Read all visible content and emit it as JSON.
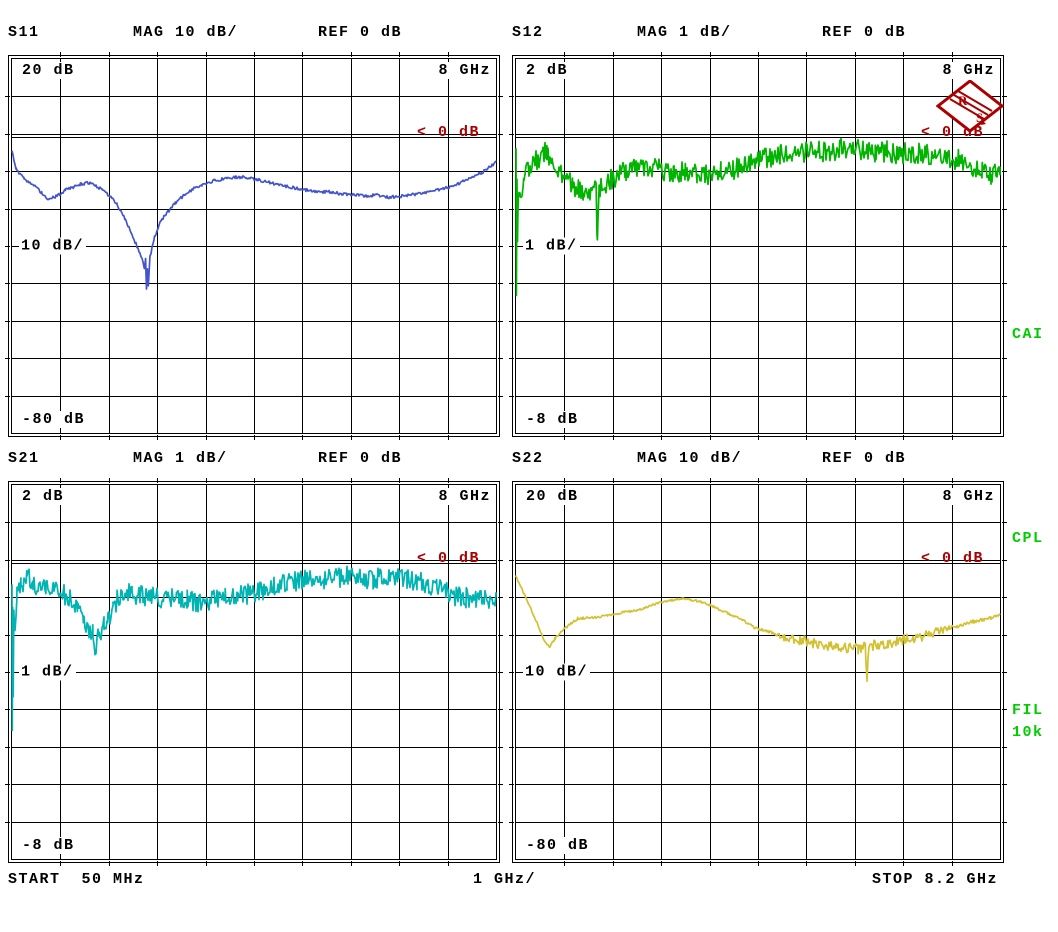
{
  "status_bar": {
    "start": "START  50 MHz",
    "per_div": "1 GHz/",
    "stop": "STOP 8.2 GHz"
  },
  "softkeys": {
    "items": [
      "CAI",
      "CPL",
      "FIL",
      "10k"
    ],
    "color": "#00cc00"
  },
  "logo": {
    "letters": {
      "r": "R",
      "s": "S"
    },
    "color": "#aa0000"
  },
  "colors": {
    "marker": "#aa0000",
    "grid": "#000000",
    "background": "#ffffff"
  },
  "chart_data": [
    {
      "type": "line",
      "param": "S11",
      "header": {
        "param": "S11",
        "scale": "MAG 10 dB/",
        "ref": "REF 0 dB"
      },
      "labels": {
        "top": "20 dB",
        "corner": "8 GHz",
        "mid": "10 dB/",
        "bottom": "-80 dB",
        "ref_marker": "< 0 dB"
      },
      "axis": {
        "x_start_ghz": 0.05,
        "x_stop_ghz": 8.2,
        "ref_db": 0,
        "db_per_div": 10,
        "top_db": 20,
        "bottom_db": -80,
        "ref_row": 2,
        "divisions": 10,
        "grid": true
      },
      "color": "#4455cc",
      "noise_db": [
        [
          0.05,
          0.4
        ],
        [
          8.2,
          0.4
        ]
      ],
      "points": [
        [
          0.05,
          -4.5
        ],
        [
          0.12,
          -9.3
        ],
        [
          0.25,
          -11.8
        ],
        [
          0.42,
          -13.7
        ],
        [
          0.55,
          -15.5
        ],
        [
          0.66,
          -17.2
        ],
        [
          0.75,
          -16.8
        ],
        [
          0.83,
          -16.3
        ],
        [
          0.95,
          -14.8
        ],
        [
          1.08,
          -14.2
        ],
        [
          1.2,
          -13.3
        ],
        [
          1.33,
          -12.9
        ],
        [
          1.45,
          -13.6
        ],
        [
          1.57,
          -14.9
        ],
        [
          1.7,
          -16.5
        ],
        [
          1.82,
          -18.8
        ],
        [
          1.95,
          -22.5
        ],
        [
          2.07,
          -26.8
        ],
        [
          2.2,
          -31.5
        ],
        [
          2.28,
          -35.5
        ],
        [
          2.3,
          -33.5
        ],
        [
          2.315,
          -41.5
        ],
        [
          2.33,
          -36.0
        ],
        [
          2.345,
          -40.5
        ],
        [
          2.37,
          -33.0
        ],
        [
          2.45,
          -27.5
        ],
        [
          2.56,
          -23.0
        ],
        [
          2.65,
          -21.2
        ],
        [
          2.8,
          -18.4
        ],
        [
          2.95,
          -16.2
        ],
        [
          3.1,
          -14.6
        ],
        [
          3.25,
          -13.5
        ],
        [
          3.45,
          -12.4
        ],
        [
          3.6,
          -11.9
        ],
        [
          3.8,
          -11.4
        ],
        [
          4.0,
          -11.5
        ],
        [
          4.2,
          -12.1
        ],
        [
          4.4,
          -12.9
        ],
        [
          4.6,
          -13.6
        ],
        [
          4.8,
          -14.3
        ],
        [
          5.0,
          -14.9
        ],
        [
          5.2,
          -15.5
        ],
        [
          5.4,
          -15.3
        ],
        [
          5.6,
          -15.9
        ],
        [
          5.8,
          -16.1
        ],
        [
          6.0,
          -16.4
        ],
        [
          6.2,
          -16.2
        ],
        [
          6.4,
          -16.8
        ],
        [
          6.6,
          -16.5
        ],
        [
          6.8,
          -16.1
        ],
        [
          7.0,
          -15.5
        ],
        [
          7.2,
          -14.9
        ],
        [
          7.4,
          -14.2
        ],
        [
          7.6,
          -12.9
        ],
        [
          7.8,
          -11.4
        ],
        [
          7.95,
          -10.3
        ],
        [
          8.05,
          -9.2
        ],
        [
          8.2,
          -7.4
        ]
      ]
    },
    {
      "type": "line",
      "param": "S12",
      "header": {
        "param": "S12",
        "scale": "MAG 1 dB/",
        "ref": "REF 0 dB"
      },
      "labels": {
        "top": "2 dB",
        "corner": "8 GHz",
        "mid": "1 dB/",
        "bottom": "-8 dB",
        "ref_marker": "< 0 dB"
      },
      "axis": {
        "x_start_ghz": 0.05,
        "x_stop_ghz": 8.2,
        "ref_db": 0,
        "db_per_div": 1,
        "top_db": 2,
        "bottom_db": -8,
        "ref_row": 2,
        "divisions": 10,
        "grid": true
      },
      "color": "#00b400",
      "noise_db": [
        [
          0.05,
          0.28
        ],
        [
          8.2,
          0.28
        ]
      ],
      "points": [
        [
          0.05,
          -0.6
        ],
        [
          0.057,
          -4.2
        ],
        [
          0.065,
          -1.1
        ],
        [
          0.075,
          -2.9
        ],
        [
          0.09,
          -1.4
        ],
        [
          0.12,
          -1.6
        ],
        [
          0.18,
          -1.2
        ],
        [
          0.28,
          -0.9
        ],
        [
          0.38,
          -0.7
        ],
        [
          0.5,
          -0.55
        ],
        [
          0.57,
          -0.42
        ],
        [
          0.65,
          -0.7
        ],
        [
          0.78,
          -0.95
        ],
        [
          0.9,
          -1.15
        ],
        [
          1.0,
          -1.35
        ],
        [
          1.1,
          -1.45
        ],
        [
          1.2,
          -1.55
        ],
        [
          1.3,
          -1.5
        ],
        [
          1.4,
          -1.45
        ],
        [
          1.42,
          -3.0
        ],
        [
          1.45,
          -1.5
        ],
        [
          1.55,
          -1.3
        ],
        [
          1.7,
          -1.15
        ],
        [
          1.9,
          -0.95
        ],
        [
          2.1,
          -0.85
        ],
        [
          2.3,
          -0.9
        ],
        [
          2.5,
          -0.95
        ],
        [
          2.7,
          -1.05
        ],
        [
          2.9,
          -1.0
        ],
        [
          3.1,
          -1.05
        ],
        [
          3.3,
          -1.1
        ],
        [
          3.5,
          -1.0
        ],
        [
          3.7,
          -0.95
        ],
        [
          3.9,
          -0.85
        ],
        [
          4.1,
          -0.75
        ],
        [
          4.3,
          -0.6
        ],
        [
          4.5,
          -0.55
        ],
        [
          4.7,
          -0.5
        ],
        [
          4.9,
          -0.48
        ],
        [
          5.1,
          -0.42
        ],
        [
          5.3,
          -0.5
        ],
        [
          5.5,
          -0.38
        ],
        [
          5.7,
          -0.35
        ],
        [
          5.9,
          -0.42
        ],
        [
          6.1,
          -0.48
        ],
        [
          6.3,
          -0.45
        ],
        [
          6.5,
          -0.52
        ],
        [
          6.7,
          -0.48
        ],
        [
          6.9,
          -0.5
        ],
        [
          7.1,
          -0.55
        ],
        [
          7.3,
          -0.6
        ],
        [
          7.5,
          -0.68
        ],
        [
          7.7,
          -0.8
        ],
        [
          7.9,
          -0.95
        ],
        [
          8.05,
          -1.1
        ],
        [
          8.2,
          -1.0
        ]
      ]
    },
    {
      "type": "line",
      "param": "S21",
      "header": {
        "param": "S21",
        "scale": "MAG 1 dB/",
        "ref": "REF 0 dB"
      },
      "labels": {
        "top": "2 dB",
        "corner": "8 GHz",
        "mid": "1 dB/",
        "bottom": "-8 dB",
        "ref_marker": "< 0 dB"
      },
      "axis": {
        "x_start_ghz": 0.05,
        "x_stop_ghz": 8.2,
        "ref_db": 0,
        "db_per_div": 1,
        "top_db": 2,
        "bottom_db": -8,
        "ref_row": 2,
        "divisions": 10,
        "grid": true
      },
      "color": "#00b4b4",
      "noise_db": [
        [
          0.05,
          0.28
        ],
        [
          8.2,
          0.28
        ]
      ],
      "points": [
        [
          0.05,
          -0.8
        ],
        [
          0.055,
          -4.5
        ],
        [
          0.062,
          -1.2
        ],
        [
          0.07,
          -3.6
        ],
        [
          0.08,
          -1.6
        ],
        [
          0.1,
          -2.0
        ],
        [
          0.13,
          -1.0
        ],
        [
          0.2,
          -0.7
        ],
        [
          0.3,
          -0.45
        ],
        [
          0.4,
          -0.6
        ],
        [
          0.5,
          -0.85
        ],
        [
          0.62,
          -0.75
        ],
        [
          0.75,
          -0.8
        ],
        [
          0.9,
          -0.9
        ],
        [
          1.05,
          -1.0
        ],
        [
          1.15,
          -1.25
        ],
        [
          1.25,
          -1.6
        ],
        [
          1.35,
          -1.8
        ],
        [
          1.41,
          -1.9
        ],
        [
          1.46,
          -2.35
        ],
        [
          1.52,
          -1.95
        ],
        [
          1.6,
          -1.7
        ],
        [
          1.66,
          -1.6
        ],
        [
          1.75,
          -1.25
        ],
        [
          1.82,
          -1.05
        ],
        [
          1.95,
          -0.9
        ],
        [
          2.07,
          -0.85
        ],
        [
          2.25,
          -0.95
        ],
        [
          2.4,
          -0.95
        ],
        [
          2.6,
          -1.0
        ],
        [
          2.82,
          -1.05
        ],
        [
          3.0,
          -1.05
        ],
        [
          3.23,
          -1.1
        ],
        [
          3.45,
          -1.05
        ],
        [
          3.64,
          -1.0
        ],
        [
          3.85,
          -0.95
        ],
        [
          4.06,
          -0.9
        ],
        [
          4.27,
          -0.8
        ],
        [
          4.47,
          -0.7
        ],
        [
          4.68,
          -0.6
        ],
        [
          4.89,
          -0.55
        ],
        [
          5.1,
          -0.5
        ],
        [
          5.3,
          -0.5
        ],
        [
          5.5,
          -0.45
        ],
        [
          5.71,
          -0.42
        ],
        [
          5.92,
          -0.48
        ],
        [
          6.13,
          -0.5
        ],
        [
          6.34,
          -0.45
        ],
        [
          6.54,
          -0.42
        ],
        [
          6.7,
          -0.5
        ],
        [
          6.87,
          -0.55
        ],
        [
          7.03,
          -0.65
        ],
        [
          7.2,
          -0.75
        ],
        [
          7.37,
          -0.85
        ],
        [
          7.53,
          -0.95
        ],
        [
          7.7,
          -1.0
        ],
        [
          7.86,
          -1.1
        ],
        [
          8.0,
          -1.05
        ],
        [
          8.2,
          -1.0
        ]
      ]
    },
    {
      "type": "line",
      "param": "S22",
      "header": {
        "param": "S22",
        "scale": "MAG 10 dB/",
        "ref": "REF 0 dB"
      },
      "labels": {
        "top": "20 dB",
        "corner": "8 GHz",
        "mid": "10 dB/",
        "bottom": "-80 dB",
        "ref_marker": "< 0 dB"
      },
      "axis": {
        "x_start_ghz": 0.05,
        "x_stop_ghz": 8.2,
        "ref_db": 0,
        "db_per_div": 10,
        "top_db": 20,
        "bottom_db": -80,
        "ref_row": 2,
        "divisions": 10,
        "grid": true
      },
      "color": "#d2c232",
      "noise_db": [
        [
          0.05,
          0.3
        ],
        [
          4.3,
          0.3
        ],
        [
          4.8,
          1.3
        ],
        [
          7.1,
          1.5
        ],
        [
          7.4,
          0.5
        ],
        [
          8.2,
          0.45
        ]
      ],
      "points": [
        [
          0.05,
          -4.2
        ],
        [
          0.18,
          -8.6
        ],
        [
          0.35,
          -14.7
        ],
        [
          0.51,
          -20.7
        ],
        [
          0.61,
          -23.4
        ],
        [
          0.71,
          -20.8
        ],
        [
          0.84,
          -18.6
        ],
        [
          1.0,
          -16.5
        ],
        [
          1.09,
          -15.5
        ],
        [
          1.34,
          -15.3
        ],
        [
          1.59,
          -14.7
        ],
        [
          1.84,
          -13.9
        ],
        [
          2.09,
          -13.3
        ],
        [
          2.33,
          -12.0
        ],
        [
          2.58,
          -10.8
        ],
        [
          2.83,
          -10.2
        ],
        [
          3.08,
          -10.7
        ],
        [
          3.33,
          -12.0
        ],
        [
          3.58,
          -13.9
        ],
        [
          3.83,
          -15.5
        ],
        [
          4.07,
          -18.0
        ],
        [
          4.32,
          -19.1
        ],
        [
          4.57,
          -20.7
        ],
        [
          4.82,
          -21.2
        ],
        [
          5.15,
          -22.4
        ],
        [
          5.48,
          -23.2
        ],
        [
          5.81,
          -23.6
        ],
        [
          5.93,
          -23.0
        ],
        [
          5.96,
          -31.0
        ],
        [
          6.0,
          -22.8
        ],
        [
          6.15,
          -22.6
        ],
        [
          6.31,
          -22.4
        ],
        [
          6.56,
          -21.2
        ],
        [
          6.81,
          -20.6
        ],
        [
          7.06,
          -19.2
        ],
        [
          7.31,
          -18.1
        ],
        [
          7.55,
          -17.3
        ],
        [
          7.8,
          -16.1
        ],
        [
          8.05,
          -15.3
        ],
        [
          8.2,
          -14.2
        ]
      ]
    }
  ]
}
